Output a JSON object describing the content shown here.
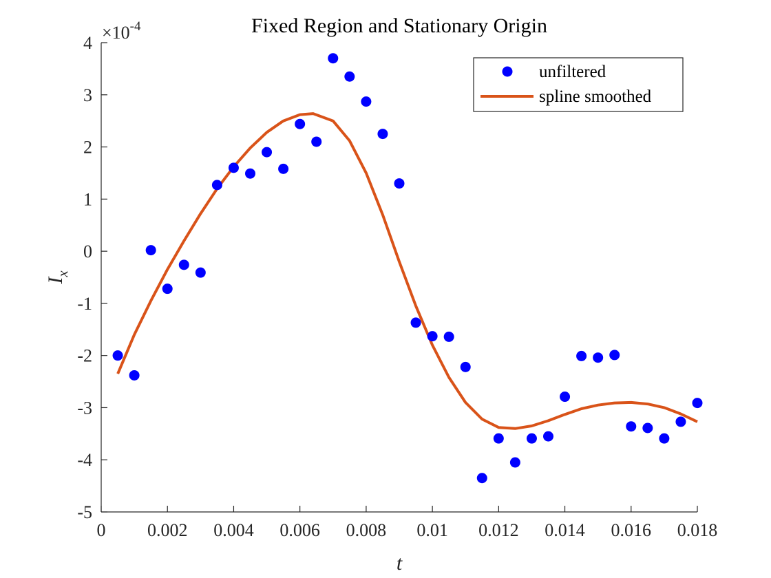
{
  "chart_data": {
    "type": "scatter",
    "title": "Fixed Region and Stationary Origin",
    "xlabel": "t",
    "ylabel_base": "I",
    "ylabel_sub": "x",
    "xlim": [
      0,
      0.018
    ],
    "ylim": [
      -5,
      4
    ],
    "exponent_label": "×10",
    "exponent_power": "-4",
    "xticks": [
      0,
      0.002,
      0.004,
      0.006,
      0.008,
      0.01,
      0.012,
      0.014,
      0.016,
      0.018
    ],
    "xtick_labels": [
      "0",
      "0.002",
      "0.004",
      "0.006",
      "0.008",
      "0.01",
      "0.012",
      "0.014",
      "0.016",
      "0.018"
    ],
    "yticks": [
      -5,
      -4,
      -3,
      -2,
      -1,
      0,
      1,
      2,
      3,
      4
    ],
    "ytick_labels": [
      "-5",
      "-4",
      "-3",
      "-2",
      "-1",
      "0",
      "1",
      "2",
      "3",
      "4"
    ],
    "legend_position": "top-right",
    "series": [
      {
        "name": "unfiltered",
        "kind": "scatter",
        "color": "#0000ff",
        "x": [
          0.0005,
          0.001,
          0.0015,
          0.002,
          0.0025,
          0.003,
          0.0035,
          0.004,
          0.0045,
          0.005,
          0.0055,
          0.006,
          0.0065,
          0.007,
          0.0075,
          0.008,
          0.0085,
          0.009,
          0.0095,
          0.01,
          0.0105,
          0.011,
          0.0115,
          0.012,
          0.0125,
          0.013,
          0.0135,
          0.014,
          0.0145,
          0.015,
          0.0155,
          0.016,
          0.0165,
          0.017,
          0.0175,
          0.018
        ],
        "y": [
          -2.0,
          -2.38,
          0.02,
          -0.72,
          -0.26,
          -0.41,
          1.27,
          1.6,
          1.49,
          1.9,
          1.58,
          2.44,
          2.1,
          3.7,
          3.35,
          2.87,
          2.25,
          1.3,
          -1.37,
          -1.63,
          -1.64,
          -2.22,
          -4.35,
          -3.59,
          -4.05,
          -3.59,
          -3.55,
          -2.79,
          -2.01,
          -2.04,
          -1.99,
          -3.36,
          -3.39,
          -3.59,
          -3.27,
          -2.91
        ]
      },
      {
        "name": "spline smoothed",
        "kind": "line",
        "color": "#d95319",
        "x": [
          0.0005,
          0.001,
          0.0015,
          0.002,
          0.0025,
          0.003,
          0.0035,
          0.004,
          0.0045,
          0.005,
          0.0055,
          0.006,
          0.0064,
          0.007,
          0.0075,
          0.008,
          0.0085,
          0.009,
          0.0095,
          0.01,
          0.0105,
          0.011,
          0.0115,
          0.012,
          0.0125,
          0.013,
          0.0135,
          0.014,
          0.0145,
          0.015,
          0.0155,
          0.016,
          0.0165,
          0.017,
          0.0175,
          0.018
        ],
        "y": [
          -2.35,
          -1.6,
          -0.95,
          -0.35,
          0.2,
          0.72,
          1.2,
          1.62,
          1.98,
          2.28,
          2.5,
          2.62,
          2.64,
          2.5,
          2.12,
          1.5,
          0.7,
          -0.2,
          -1.05,
          -1.8,
          -2.42,
          -2.9,
          -3.22,
          -3.38,
          -3.4,
          -3.35,
          -3.25,
          -3.13,
          -3.02,
          -2.95,
          -2.91,
          -2.9,
          -2.93,
          -3.0,
          -3.12,
          -3.27
        ]
      }
    ]
  }
}
